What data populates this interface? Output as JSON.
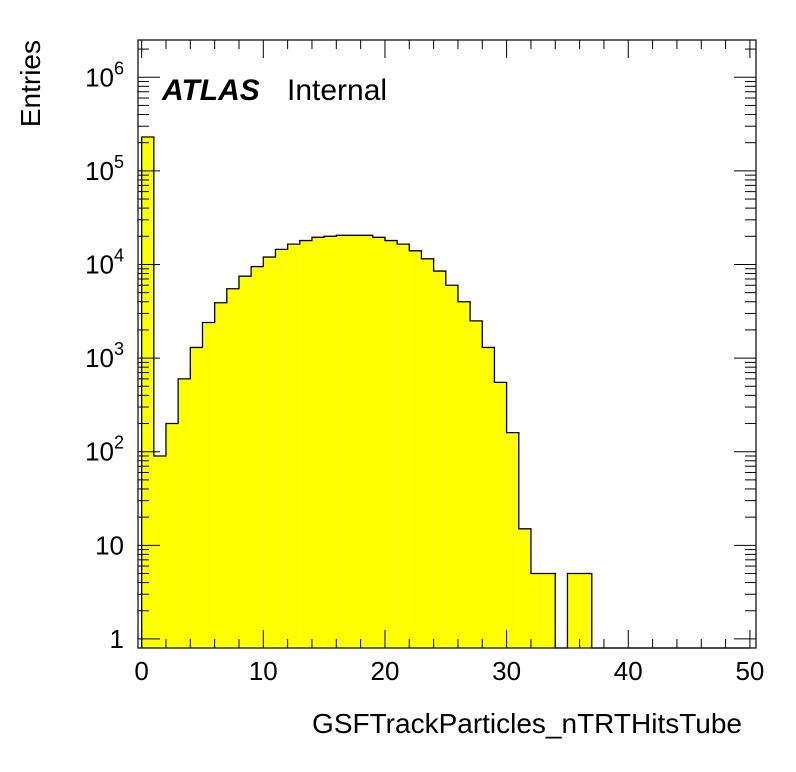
{
  "chart_data": {
    "type": "bar",
    "style": "histogram",
    "fill_color": "#ffff00",
    "line_color": "#000000",
    "bin_width": 1,
    "bin_edges": [
      0,
      50
    ],
    "values": [
      230000,
      90,
      200,
      600,
      1300,
      2400,
      3900,
      5500,
      7500,
      9500,
      12000,
      14500,
      16500,
      18000,
      19500,
      20000,
      20500,
      20500,
      20500,
      19500,
      18000,
      16500,
      14000,
      11500,
      8500,
      6000,
      4000,
      2500,
      1300,
      550,
      160,
      15,
      5,
      5,
      0,
      5,
      5,
      0,
      0,
      0,
      0,
      0,
      0,
      0,
      0,
      0,
      0,
      0,
      0,
      0
    ],
    "xlabel": "GSFTrackParticles_nTRTHitsTube",
    "ylabel": "Entries",
    "xlim": [
      -0.3,
      50.5
    ],
    "ylim": [
      0.8,
      2500000
    ],
    "yscale": "log",
    "x_ticks": [
      0,
      10,
      20,
      30,
      40,
      50
    ],
    "y_ticks": [
      {
        "value": 1,
        "base": "1",
        "exp": ""
      },
      {
        "value": 10,
        "base": "10",
        "exp": ""
      },
      {
        "value": 100,
        "base": "10",
        "exp": "2"
      },
      {
        "value": 1000,
        "base": "10",
        "exp": "3"
      },
      {
        "value": 10000,
        "base": "10",
        "exp": "4"
      },
      {
        "value": 100000,
        "base": "10",
        "exp": "5"
      },
      {
        "value": 1000000,
        "base": "10",
        "exp": "6"
      }
    ],
    "label_bold": "ATLAS",
    "label_text": "Internal",
    "grid": false,
    "legend": "none"
  }
}
